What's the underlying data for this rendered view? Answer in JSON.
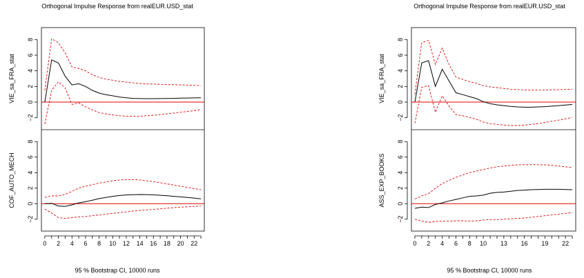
{
  "chart_data": [
    {
      "type": "line",
      "title": "Orthogonal Impulse Response from realEUR.USD_stat",
      "caption": "95 % Bootstrap CI,  10000 runs",
      "x_ticks": [
        0,
        2,
        4,
        6,
        8,
        10,
        12,
        14,
        16,
        18,
        20,
        22
      ],
      "ylim": [
        -3,
        9
      ],
      "y_ticks": [
        -2,
        0,
        2,
        4,
        6,
        8
      ],
      "zero_line_color": "#e00000",
      "ci_color": "#e00000",
      "panels": [
        {
          "ylabel": "VIE_sa_FRA_stat",
          "irf": [
            0,
            5.4,
            5.0,
            3.3,
            2.2,
            2.35,
            2.0,
            1.5,
            1.15,
            0.95,
            0.8,
            0.65,
            0.55,
            0.48,
            0.45,
            0.44,
            0.44,
            0.45,
            0.46,
            0.48,
            0.5,
            0.52,
            0.54,
            0.55
          ],
          "upper": [
            1.5,
            8.1,
            7.6,
            6.3,
            4.5,
            4.3,
            4.0,
            3.5,
            3.15,
            2.95,
            2.8,
            2.65,
            2.55,
            2.45,
            2.38,
            2.33,
            2.3,
            2.27,
            2.24,
            2.22,
            2.2,
            2.18,
            2.15,
            2.1
          ],
          "lower": [
            -2.8,
            1.5,
            2.6,
            1.8,
            -0.3,
            -0.1,
            -0.6,
            -1.0,
            -1.35,
            -1.5,
            -1.65,
            -1.75,
            -1.8,
            -1.82,
            -1.8,
            -1.75,
            -1.68,
            -1.6,
            -1.5,
            -1.4,
            -1.3,
            -1.2,
            -1.1,
            -0.95
          ]
        },
        {
          "ylabel": "COF_AUTO_MECH",
          "irf": [
            0,
            0.05,
            -0.3,
            -0.35,
            -0.15,
            0.1,
            0.25,
            0.45,
            0.65,
            0.8,
            0.95,
            1.05,
            1.12,
            1.16,
            1.18,
            1.17,
            1.13,
            1.08,
            1.02,
            0.95,
            0.88,
            0.8,
            0.72,
            0.63
          ],
          "upper": [
            0.8,
            1.0,
            1.0,
            1.2,
            1.6,
            2.0,
            2.25,
            2.45,
            2.65,
            2.8,
            2.95,
            3.05,
            3.1,
            3.1,
            3.05,
            2.95,
            2.85,
            2.7,
            2.55,
            2.4,
            2.25,
            2.1,
            1.95,
            1.8
          ],
          "lower": [
            -0.7,
            -1.2,
            -1.8,
            -1.9,
            -1.8,
            -1.7,
            -1.65,
            -1.55,
            -1.45,
            -1.35,
            -1.25,
            -1.15,
            -1.05,
            -0.95,
            -0.88,
            -0.8,
            -0.72,
            -0.65,
            -0.58,
            -0.5,
            -0.45,
            -0.4,
            -0.35,
            -0.3
          ]
        }
      ]
    },
    {
      "type": "line",
      "title": "Orthogonal Impulse Response from realEUR.USD_stat",
      "caption": "95 % Bootstrap CI,  10000 runs",
      "x_ticks": [
        0,
        2,
        4,
        6,
        8,
        10,
        13,
        16,
        19,
        22
      ],
      "ylim": [
        -3,
        9
      ],
      "y_ticks": [
        -2,
        0,
        2,
        4,
        6,
        8
      ],
      "zero_line_color": "#e00000",
      "ci_color": "#e00000",
      "panels": [
        {
          "ylabel": "VIE_sa_FRA_stat",
          "irf": [
            0,
            5.0,
            5.3,
            2.0,
            4.2,
            2.7,
            1.2,
            0.95,
            0.7,
            0.45,
            0.05,
            -0.2,
            -0.35,
            -0.45,
            -0.55,
            -0.62,
            -0.65,
            -0.65,
            -0.62,
            -0.58,
            -0.52,
            -0.45,
            -0.38,
            -0.3
          ],
          "upper": [
            1.0,
            7.6,
            7.9,
            4.8,
            6.9,
            4.8,
            3.2,
            2.9,
            2.6,
            2.4,
            2.1,
            1.95,
            1.85,
            1.75,
            1.65,
            1.6,
            1.55,
            1.55,
            1.55,
            1.55,
            1.57,
            1.6,
            1.62,
            1.65
          ],
          "lower": [
            -2.7,
            1.9,
            2.1,
            -1.3,
            0.8,
            -0.5,
            -1.6,
            -1.75,
            -1.95,
            -2.2,
            -2.55,
            -2.75,
            -2.85,
            -2.95,
            -3.0,
            -3.0,
            -2.95,
            -2.85,
            -2.75,
            -2.6,
            -2.45,
            -2.3,
            -2.15,
            -1.95
          ]
        },
        {
          "ylabel": "ASS_EXP_BOOKS",
          "irf": [
            -0.6,
            -0.45,
            -0.5,
            -0.1,
            0.1,
            0.35,
            0.55,
            0.75,
            0.95,
            1.0,
            1.1,
            1.35,
            1.45,
            1.5,
            1.6,
            1.7,
            1.75,
            1.8,
            1.82,
            1.85,
            1.85,
            1.85,
            1.82,
            1.8
          ],
          "upper": [
            0.6,
            1.0,
            1.3,
            2.0,
            2.6,
            3.0,
            3.4,
            3.7,
            4.0,
            4.2,
            4.4,
            4.6,
            4.75,
            4.85,
            4.95,
            5.0,
            5.02,
            5.03,
            5.02,
            5.0,
            4.95,
            4.85,
            4.75,
            4.65
          ],
          "lower": [
            -2.0,
            -2.25,
            -2.4,
            -2.3,
            -2.25,
            -2.25,
            -2.2,
            -2.2,
            -2.25,
            -2.2,
            -2.1,
            -2.05,
            -2.05,
            -2.0,
            -1.95,
            -1.9,
            -1.85,
            -1.75,
            -1.65,
            -1.55,
            -1.45,
            -1.35,
            -1.25,
            -1.15
          ]
        }
      ]
    }
  ]
}
